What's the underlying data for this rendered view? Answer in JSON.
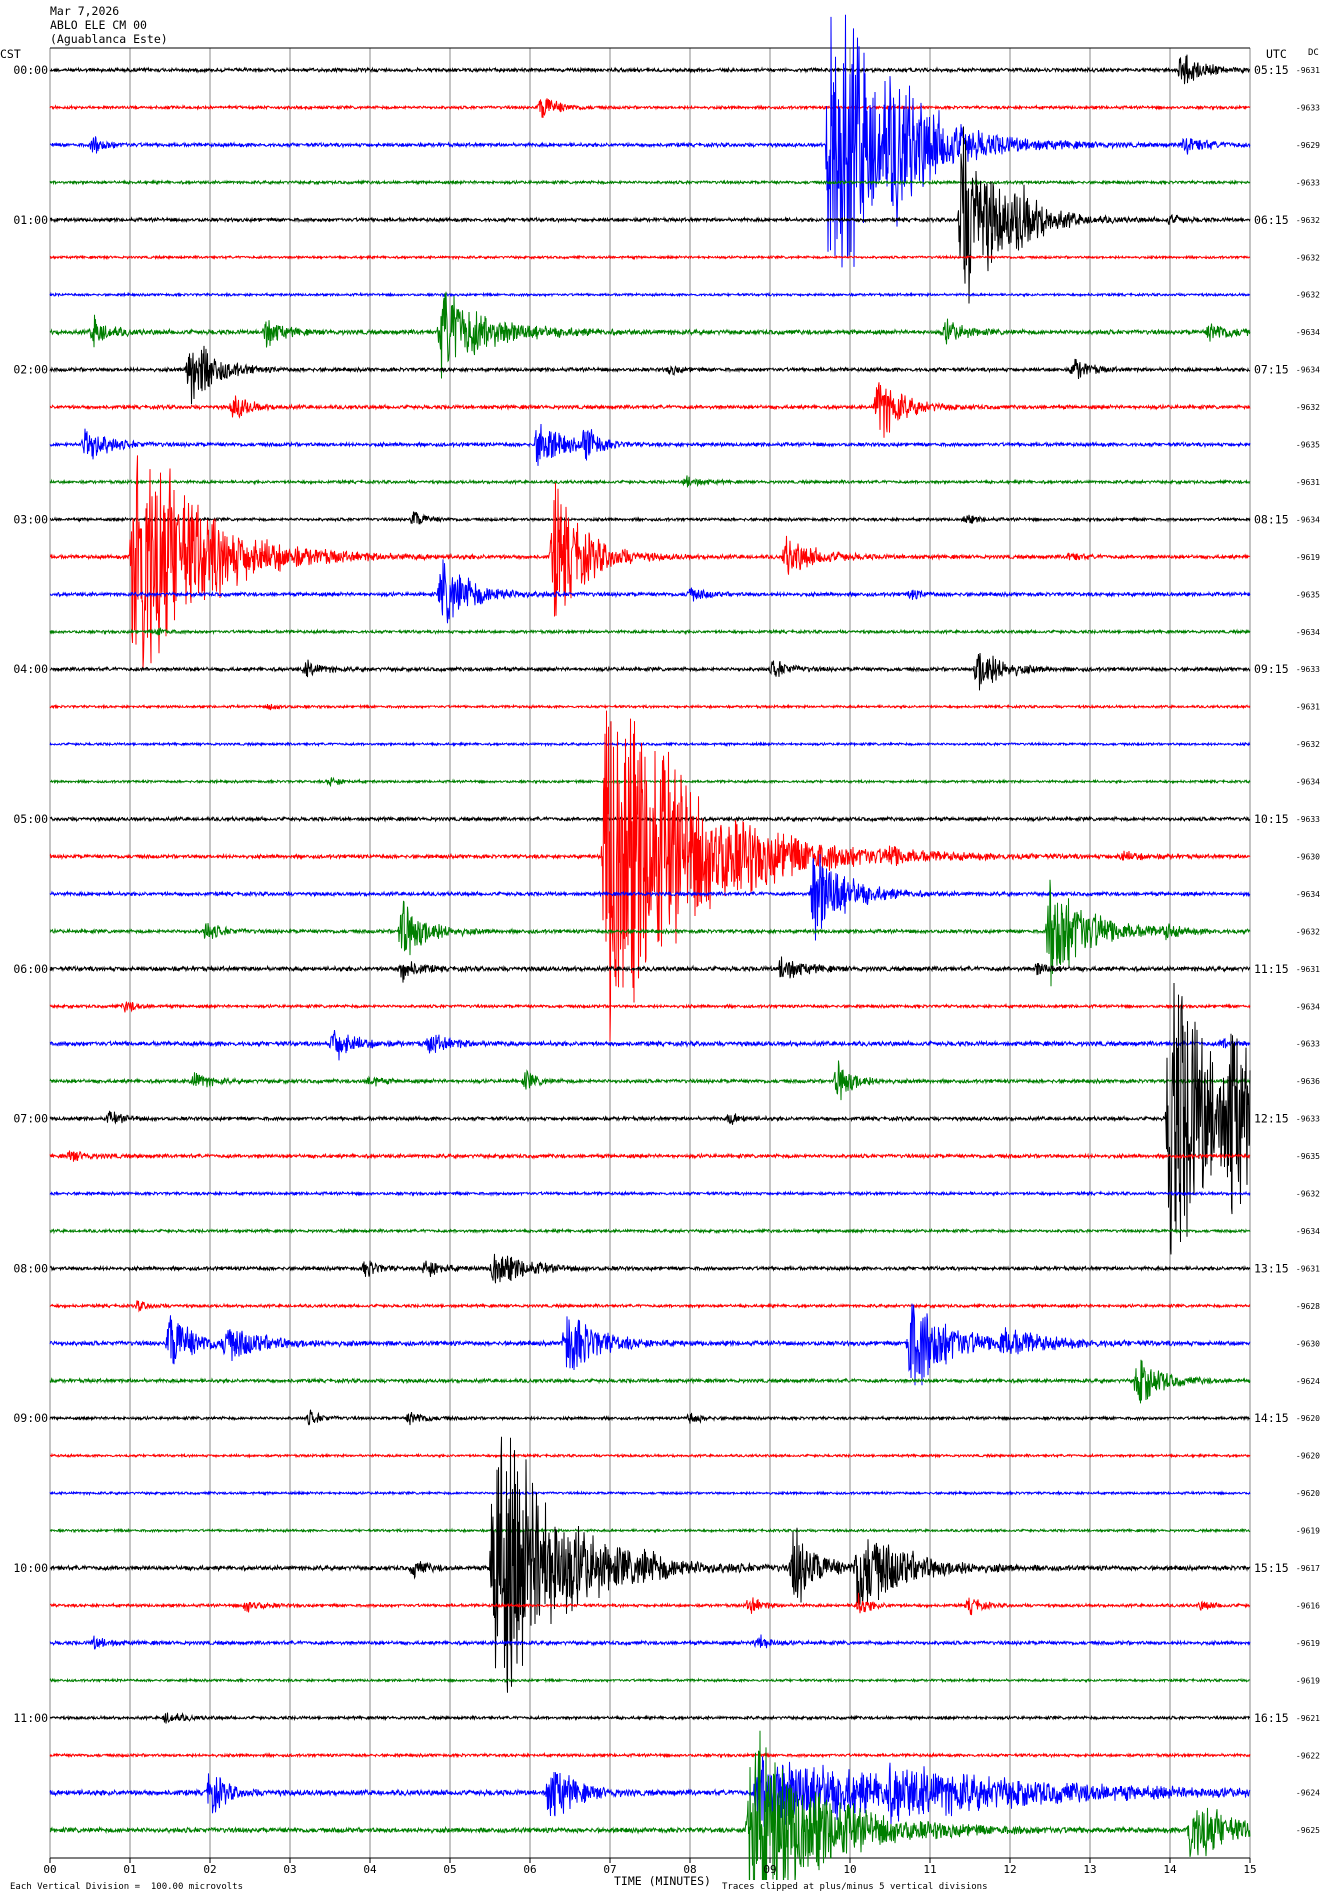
{
  "header": {
    "date": "Mar 7,2026",
    "station": "ABLO ELE CM 00",
    "location": "(Aguablanca Este)"
  },
  "labels": {
    "left_tz": "CST",
    "right_tz": "UTC",
    "dc": "DC"
  },
  "footer": {
    "scale_note": "Each Vertical Division =  100.00 microvolts",
    "xlabel": "TIME (MINUTES)",
    "clip_note": "Traces clipped at plus/minus 5 vertical divisions"
  },
  "colors": {
    "trace_cycle": [
      "#000000",
      "#ff0000",
      "#0000ff",
      "#007f00"
    ],
    "grid": "#888888"
  },
  "chart_data": {
    "type": "line",
    "title": "",
    "xlabel": "TIME (MINUTES)",
    "ylabel": "",
    "xlim": [
      0,
      15
    ],
    "x_ticks": [
      "00",
      "01",
      "02",
      "03",
      "04",
      "05",
      "06",
      "07",
      "08",
      "09",
      "10",
      "11",
      "12",
      "13",
      "14",
      "15"
    ],
    "row_interval_minutes": 15,
    "rows_count": 48,
    "left_hour_labels": [
      "00:00",
      "01:00",
      "02:00",
      "03:00",
      "04:00",
      "05:00",
      "06:00",
      "07:00",
      "08:00",
      "09:00",
      "10:00",
      "11:00"
    ],
    "right_hour_labels": [
      "05:15",
      "06:15",
      "07:15",
      "08:15",
      "09:15",
      "10:15",
      "11:15",
      "12:15",
      "13:15",
      "14:15",
      "15:15",
      "16:15"
    ],
    "dc_offsets": [
      "-9631",
      "-9633",
      "-9629",
      "-9633",
      "-9632",
      "-9632",
      "-9632",
      "-9634",
      "-9634",
      "-9632",
      "-9635",
      "-9631",
      "-9634",
      "-9619",
      "-9635",
      "-9634",
      "-9633",
      "-9631",
      "-9632",
      "-9634",
      "-9633",
      "-9630",
      "-9634",
      "-9632",
      "-9631",
      "-9634",
      "-9633",
      "-9636",
      "-9633",
      "-9635",
      "-9632",
      "-9634",
      "-9631",
      "-9628",
      "-9630",
      "-9624",
      "-9620",
      "-9620",
      "-9620",
      "-9619",
      "-9617",
      "-9616",
      "-9619",
      "-9619",
      "-9621",
      "-9622",
      "-9624",
      "-9625"
    ],
    "noise_amplitude_px": [
      1.5,
      1.2,
      1.5,
      1.2,
      1.5,
      1.0,
      1.0,
      1.8,
      1.5,
      1.5,
      1.5,
      1.2,
      1.2,
      1.5,
      1.5,
      1.2,
      1.5,
      1.0,
      1.0,
      1.0,
      1.5,
      1.5,
      1.5,
      1.5,
      1.8,
      1.2,
      1.8,
      1.5,
      1.5,
      1.5,
      1.2,
      1.2,
      1.5,
      1.2,
      1.8,
      1.5,
      1.2,
      1.0,
      1.0,
      1.0,
      1.8,
      1.2,
      1.5,
      1.0,
      1.2,
      1.2,
      2.2,
      2.0
    ],
    "events": [
      {
        "row": 0,
        "minute": 14.15,
        "amp": 16,
        "dur": 0.5
      },
      {
        "row": 1,
        "minute": 6.15,
        "amp": 12,
        "dur": 0.4
      },
      {
        "row": 2,
        "minute": 0.55,
        "amp": 8,
        "dur": 0.3
      },
      {
        "row": 2,
        "minute": 9.75,
        "amp": 150,
        "dur": 1.5
      },
      {
        "row": 2,
        "minute": 10.55,
        "amp": 22,
        "dur": 0.8
      },
      {
        "row": 2,
        "minute": 14.2,
        "amp": 8,
        "dur": 0.5
      },
      {
        "row": 4,
        "minute": 11.4,
        "amp": 80,
        "dur": 1.0
      },
      {
        "row": 4,
        "minute": 12.1,
        "amp": 16,
        "dur": 0.5
      },
      {
        "row": 4,
        "minute": 14.0,
        "amp": 4,
        "dur": 0.3
      },
      {
        "row": 7,
        "minute": 0.55,
        "amp": 14,
        "dur": 0.4
      },
      {
        "row": 7,
        "minute": 2.7,
        "amp": 14,
        "dur": 0.4
      },
      {
        "row": 7,
        "minute": 4.9,
        "amp": 38,
        "dur": 1.2
      },
      {
        "row": 7,
        "minute": 11.2,
        "amp": 10,
        "dur": 0.5
      },
      {
        "row": 7,
        "minute": 14.5,
        "amp": 8,
        "dur": 0.6
      },
      {
        "row": 8,
        "minute": 1.75,
        "amp": 35,
        "dur": 0.6
      },
      {
        "row": 8,
        "minute": 7.75,
        "amp": 4,
        "dur": 0.3
      },
      {
        "row": 8,
        "minute": 12.8,
        "amp": 10,
        "dur": 0.4
      },
      {
        "row": 9,
        "minute": 2.3,
        "amp": 12,
        "dur": 0.4
      },
      {
        "row": 9,
        "minute": 10.35,
        "amp": 30,
        "dur": 0.6
      },
      {
        "row": 10,
        "minute": 0.45,
        "amp": 20,
        "dur": 0.5
      },
      {
        "row": 10,
        "minute": 6.1,
        "amp": 22,
        "dur": 0.6
      },
      {
        "row": 10,
        "minute": 6.7,
        "amp": 18,
        "dur": 0.3
      },
      {
        "row": 11,
        "minute": 7.95,
        "amp": 5,
        "dur": 0.4
      },
      {
        "row": 12,
        "minute": 4.55,
        "amp": 8,
        "dur": 0.3
      },
      {
        "row": 12,
        "minute": 11.45,
        "amp": 4,
        "dur": 0.3
      },
      {
        "row": 13,
        "minute": 1.05,
        "amp": 130,
        "dur": 1.6
      },
      {
        "row": 13,
        "minute": 6.3,
        "amp": 60,
        "dur": 0.8
      },
      {
        "row": 13,
        "minute": 9.2,
        "amp": 16,
        "dur": 0.8
      },
      {
        "row": 13,
        "minute": 12.75,
        "amp": 4,
        "dur": 0.3
      },
      {
        "row": 14,
        "minute": 4.9,
        "amp": 30,
        "dur": 0.8
      },
      {
        "row": 14,
        "minute": 8.0,
        "amp": 6,
        "dur": 0.4
      },
      {
        "row": 14,
        "minute": 10.75,
        "amp": 4,
        "dur": 0.3
      },
      {
        "row": 15,
        "minute": 1.35,
        "amp": 3,
        "dur": 0.3
      },
      {
        "row": 16,
        "minute": 3.2,
        "amp": 7,
        "dur": 0.4
      },
      {
        "row": 16,
        "minute": 9.05,
        "amp": 8,
        "dur": 0.4
      },
      {
        "row": 16,
        "minute": 11.6,
        "amp": 22,
        "dur": 0.6
      },
      {
        "row": 17,
        "minute": 2.75,
        "amp": 3,
        "dur": 0.3
      },
      {
        "row": 19,
        "minute": 3.5,
        "amp": 4,
        "dur": 0.3
      },
      {
        "row": 21,
        "minute": 6.95,
        "amp": 170,
        "dur": 2.2
      },
      {
        "row": 21,
        "minute": 10.5,
        "amp": 6,
        "dur": 0.4
      },
      {
        "row": 21,
        "minute": 13.4,
        "amp": 4,
        "dur": 0.5
      },
      {
        "row": 22,
        "minute": 9.55,
        "amp": 45,
        "dur": 0.8
      },
      {
        "row": 23,
        "minute": 1.95,
        "amp": 8,
        "dur": 0.4
      },
      {
        "row": 23,
        "minute": 4.4,
        "amp": 30,
        "dur": 0.6
      },
      {
        "row": 23,
        "minute": 12.5,
        "amp": 50,
        "dur": 1.0
      },
      {
        "row": 23,
        "minute": 13.95,
        "amp": 5,
        "dur": 0.3
      },
      {
        "row": 24,
        "minute": 4.4,
        "amp": 10,
        "dur": 0.4
      },
      {
        "row": 24,
        "minute": 9.15,
        "amp": 12,
        "dur": 0.5
      },
      {
        "row": 24,
        "minute": 12.35,
        "amp": 6,
        "dur": 0.3
      },
      {
        "row": 25,
        "minute": 0.95,
        "amp": 5,
        "dur": 0.3
      },
      {
        "row": 26,
        "minute": 3.55,
        "amp": 16,
        "dur": 0.5
      },
      {
        "row": 26,
        "minute": 4.75,
        "amp": 8,
        "dur": 0.6
      },
      {
        "row": 26,
        "minute": 14.65,
        "amp": 4,
        "dur": 0.3
      },
      {
        "row": 27,
        "minute": 1.8,
        "amp": 8,
        "dur": 0.4
      },
      {
        "row": 27,
        "minute": 4.0,
        "amp": 5,
        "dur": 0.3
      },
      {
        "row": 27,
        "minute": 5.95,
        "amp": 8,
        "dur": 0.3
      },
      {
        "row": 27,
        "minute": 9.85,
        "amp": 20,
        "dur": 0.4
      },
      {
        "row": 28,
        "minute": 0.75,
        "amp": 5,
        "dur": 0.4
      },
      {
        "row": 28,
        "minute": 14.0,
        "amp": 150,
        "dur": 1.2
      },
      {
        "row": 28,
        "minute": 14.75,
        "amp": 70,
        "dur": 0.5
      },
      {
        "row": 28,
        "minute": 8.5,
        "amp": 5,
        "dur": 0.3
      },
      {
        "row": 29,
        "minute": 0.25,
        "amp": 4,
        "dur": 0.5
      },
      {
        "row": 32,
        "minute": 3.95,
        "amp": 8,
        "dur": 0.3
      },
      {
        "row": 32,
        "minute": 4.7,
        "amp": 8,
        "dur": 0.4
      },
      {
        "row": 32,
        "minute": 5.55,
        "amp": 16,
        "dur": 0.8
      },
      {
        "row": 33,
        "minute": 1.1,
        "amp": 4,
        "dur": 0.3
      },
      {
        "row": 34,
        "minute": 1.5,
        "amp": 28,
        "dur": 0.6
      },
      {
        "row": 34,
        "minute": 2.2,
        "amp": 14,
        "dur": 1.0
      },
      {
        "row": 34,
        "minute": 6.45,
        "amp": 30,
        "dur": 0.8
      },
      {
        "row": 34,
        "minute": 10.75,
        "amp": 45,
        "dur": 1.0
      },
      {
        "row": 34,
        "minute": 11.9,
        "amp": 10,
        "dur": 1.2
      },
      {
        "row": 35,
        "minute": 13.6,
        "amp": 22,
        "dur": 0.6
      },
      {
        "row": 36,
        "minute": 3.25,
        "amp": 6,
        "dur": 0.3
      },
      {
        "row": 36,
        "minute": 4.5,
        "amp": 6,
        "dur": 0.4
      },
      {
        "row": 36,
        "minute": 8.0,
        "amp": 5,
        "dur": 0.3
      },
      {
        "row": 40,
        "minute": 5.55,
        "amp": 140,
        "dur": 1.6
      },
      {
        "row": 40,
        "minute": 4.55,
        "amp": 8,
        "dur": 0.3
      },
      {
        "row": 40,
        "minute": 9.3,
        "amp": 35,
        "dur": 0.6
      },
      {
        "row": 40,
        "minute": 10.1,
        "amp": 40,
        "dur": 1.2
      },
      {
        "row": 40,
        "minute": 7.4,
        "amp": 6,
        "dur": 0.5
      },
      {
        "row": 41,
        "minute": 2.45,
        "amp": 6,
        "dur": 0.4
      },
      {
        "row": 41,
        "minute": 8.75,
        "amp": 8,
        "dur": 0.3
      },
      {
        "row": 41,
        "minute": 10.1,
        "amp": 10,
        "dur": 0.3
      },
      {
        "row": 41,
        "minute": 11.5,
        "amp": 8,
        "dur": 0.3
      },
      {
        "row": 41,
        "minute": 14.4,
        "amp": 4,
        "dur": 0.3
      },
      {
        "row": 42,
        "minute": 0.55,
        "amp": 5,
        "dur": 0.4
      },
      {
        "row": 42,
        "minute": 8.85,
        "amp": 8,
        "dur": 0.3
      },
      {
        "row": 44,
        "minute": 1.45,
        "amp": 6,
        "dur": 0.4
      },
      {
        "row": 46,
        "minute": 2.0,
        "amp": 20,
        "dur": 0.4
      },
      {
        "row": 46,
        "minute": 6.25,
        "amp": 28,
        "dur": 0.6
      },
      {
        "row": 46,
        "minute": 8.85,
        "amp": 35,
        "dur": 3.5
      },
      {
        "row": 46,
        "minute": 10.5,
        "amp": 12,
        "dur": 4.0
      },
      {
        "row": 47,
        "minute": 8.75,
        "amp": 90,
        "dur": 1.8
      },
      {
        "row": 47,
        "minute": 14.25,
        "amp": 25,
        "dur": 1.0
      },
      {
        "row": 47,
        "minute": 14.4,
        "amp": 6,
        "dur": 0.6
      }
    ],
    "grid": true
  }
}
